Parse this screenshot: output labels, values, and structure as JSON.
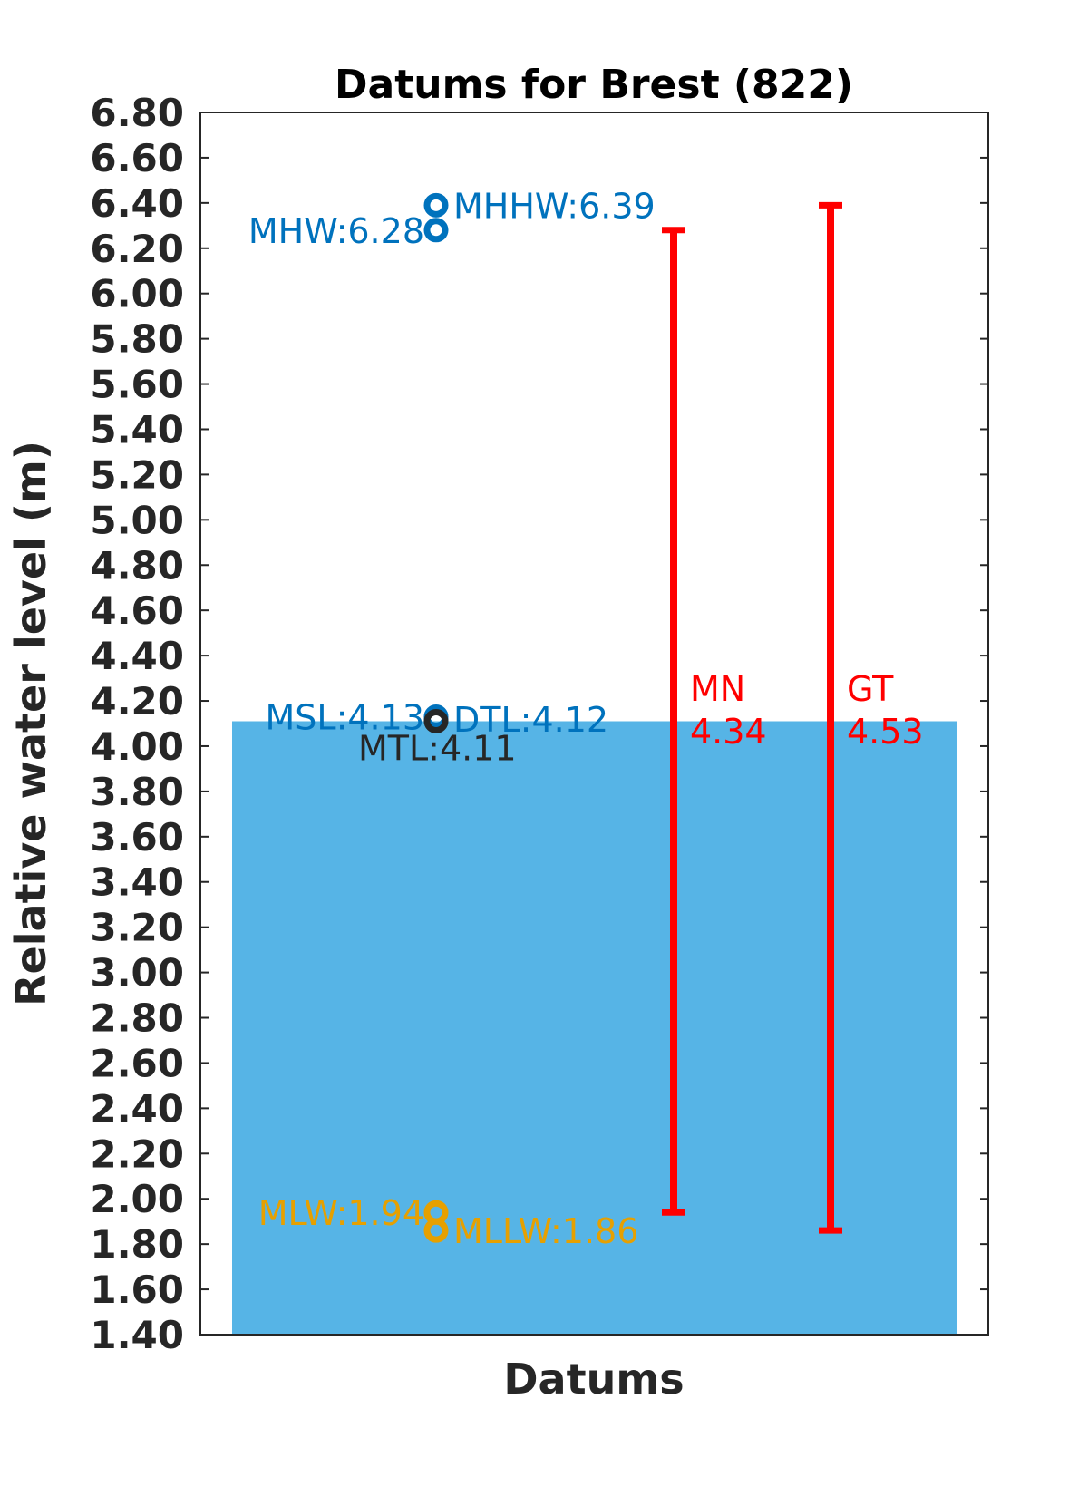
{
  "chart_data": {
    "type": "bar",
    "title": "Datums for Brest (822)",
    "xlabel": "Datums",
    "ylabel": "Relative water level (m)",
    "ylim": [
      1.4,
      6.8
    ],
    "yticks": [
      "1.40",
      "1.60",
      "1.80",
      "2.00",
      "2.20",
      "2.40",
      "2.60",
      "2.80",
      "3.00",
      "3.20",
      "3.40",
      "3.60",
      "3.80",
      "4.00",
      "4.20",
      "4.40",
      "4.60",
      "4.80",
      "5.00",
      "5.20",
      "5.40",
      "5.60",
      "5.80",
      "6.00",
      "6.20",
      "6.40",
      "6.60",
      "6.80"
    ],
    "bar": {
      "top": 4.11,
      "color": "#56B4E6"
    },
    "datums": [
      {
        "label": "MHHW:6.39",
        "value": 6.39,
        "color": "#0072BD",
        "side": "right"
      },
      {
        "label": "MHW:6.28",
        "value": 6.28,
        "color": "#0072BD",
        "side": "left"
      },
      {
        "label": "MSL:4.13",
        "value": 4.13,
        "color": "#0072BD",
        "side": "left"
      },
      {
        "label": "DTL:4.12",
        "value": 4.12,
        "color": "#0072BD",
        "side": "right"
      },
      {
        "label": "MTL:4.11",
        "value": 4.11,
        "color": "#262626",
        "side": "below"
      },
      {
        "label": "MLW:1.94",
        "value": 1.94,
        "color": "#E6A000",
        "side": "left"
      },
      {
        "label": "MLLW:1.86",
        "value": 1.86,
        "color": "#E6A000",
        "side": "right"
      }
    ],
    "ranges": [
      {
        "name": "MN",
        "value_label": "4.34",
        "low": 1.94,
        "high": 6.28,
        "color": "#FF0000"
      },
      {
        "name": "GT",
        "value_label": "4.53",
        "low": 1.86,
        "high": 6.39,
        "color": "#FF0000"
      }
    ],
    "grid": false
  }
}
